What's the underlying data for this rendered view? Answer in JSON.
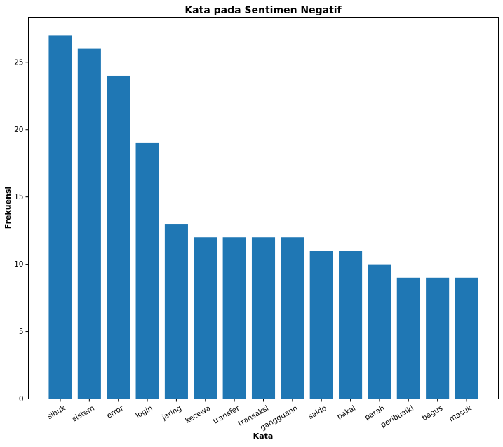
{
  "chart_data": {
    "type": "bar",
    "title": "Kata pada Sentimen Negatif",
    "xlabel": "Kata",
    "ylabel": "Frekuensi",
    "categories": [
      "sibuk",
      "sistem",
      "error",
      "login",
      "jaring",
      "kecewa",
      "transfer",
      "transaksi",
      "gangguann",
      "saldo",
      "pakai",
      "parah",
      "peribuaiki",
      "bagus",
      "masuk"
    ],
    "values": [
      27,
      26,
      24,
      19,
      13,
      12,
      12,
      12,
      12,
      11,
      11,
      10,
      9,
      9,
      9
    ],
    "yticks": [
      0,
      5,
      10,
      15,
      20,
      25
    ],
    "ylim": [
      0,
      28.35
    ],
    "bar_color": "#1f77b4",
    "grid": false,
    "legend": "none"
  }
}
